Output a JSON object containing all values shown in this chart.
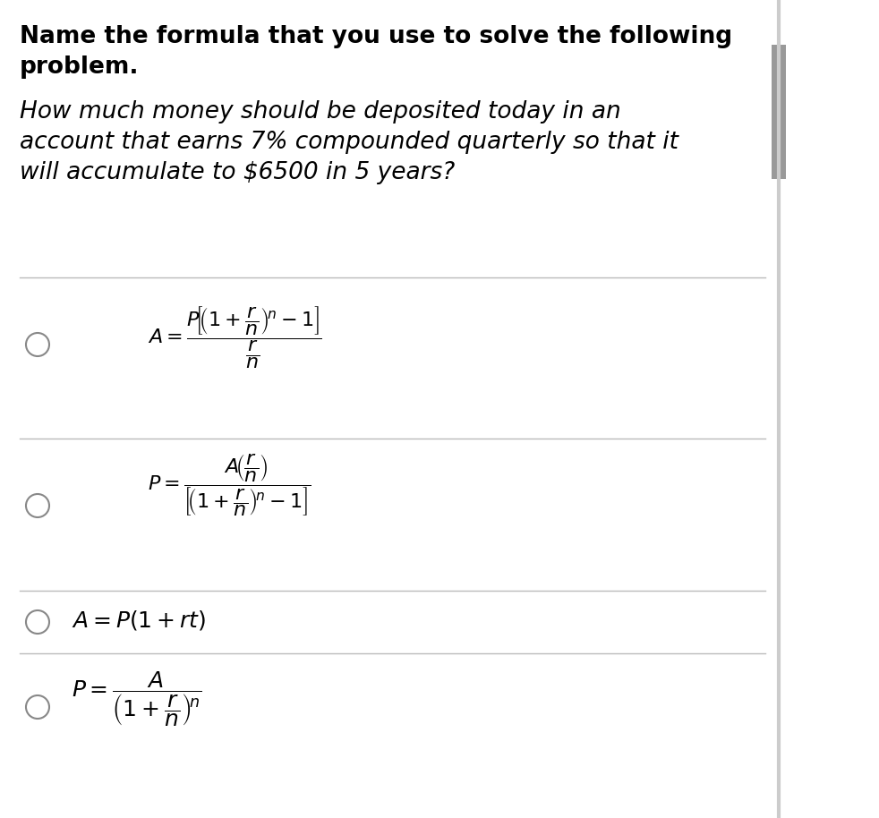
{
  "bg_color": "#ffffff",
  "title_line1": "Name the formula that you use to solve the following",
  "title_line2": "problem.",
  "question_line1": "How much money should be deposited today in an",
  "question_line2": "account that earns 7% compounded quarterly so that it",
  "question_line3": "will accumulate to $6500 in 5 years?",
  "text_color": "#000000",
  "line_color": "#bbbbbb",
  "circle_color": "#888888",
  "right_bar_color": "#aaaaaa",
  "title_fontsize": 19,
  "question_fontsize": 19,
  "formula_fontsize": 16,
  "opt3_fontsize": 18
}
